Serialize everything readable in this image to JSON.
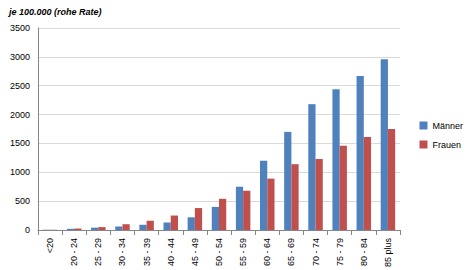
{
  "chart_data": {
    "type": "bar",
    "ylabel": "je 100.000 (rohe Rate)",
    "categories": [
      "<20",
      "20 - 24",
      "25 - 29",
      "30 - 34",
      "35 - 39",
      "40 - 44",
      "45 - 49",
      "50 - 54",
      "55 - 59",
      "60 - 64",
      "65 - 69",
      "70 - 74",
      "75 - 79",
      "80 - 84",
      "85 plus"
    ],
    "series": [
      {
        "name": "Männer",
        "color": "#4f81bd",
        "values": [
          5,
          20,
          40,
          60,
          90,
          130,
          220,
          400,
          750,
          1200,
          1700,
          2180,
          2440,
          2670,
          2960
        ]
      },
      {
        "name": "Frauen",
        "color": "#c0504d",
        "values": [
          5,
          25,
          50,
          100,
          160,
          250,
          380,
          540,
          680,
          890,
          1140,
          1230,
          1460,
          1610,
          1750
        ]
      }
    ],
    "ylim": [
      0,
      3500
    ],
    "yticks": [
      0,
      500,
      1000,
      1500,
      2000,
      2500,
      3000,
      3500
    ],
    "grid": true,
    "legend": "right"
  }
}
